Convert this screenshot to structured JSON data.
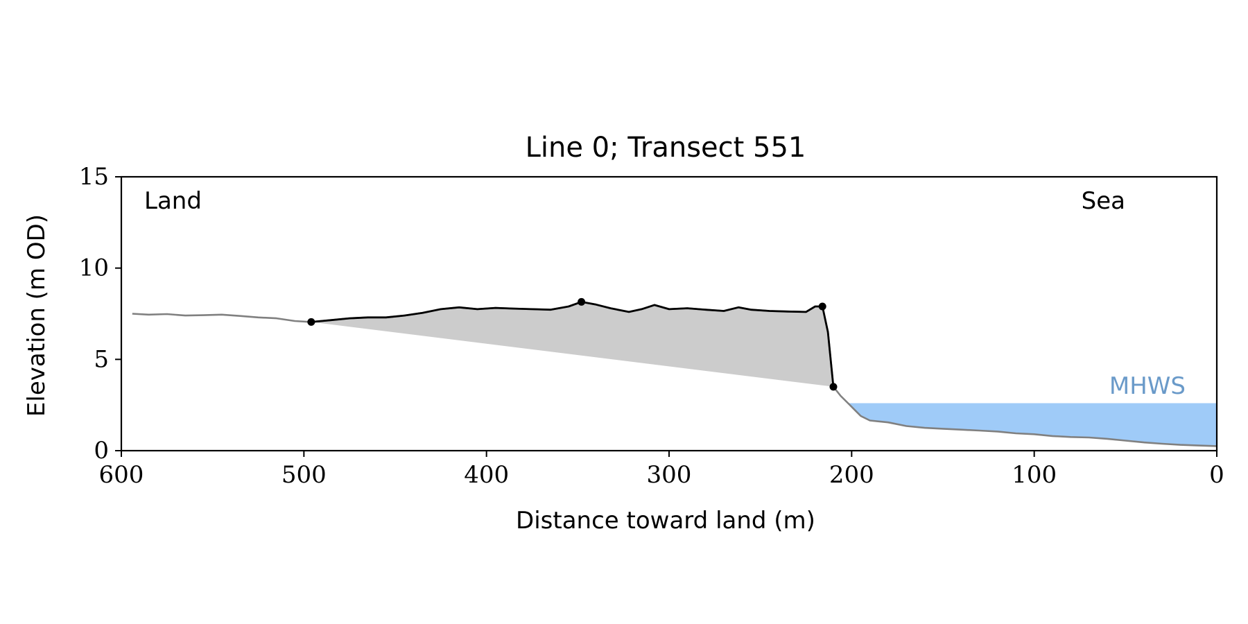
{
  "chart_data": {
    "type": "line",
    "title": "Line 0; Transect 551",
    "xlabel": "Distance toward land (m)",
    "ylabel": "Elevation (m OD)",
    "xlim": [
      600,
      0
    ],
    "ylim": [
      0,
      15
    ],
    "x_ticks": [
      600,
      500,
      400,
      300,
      200,
      100,
      0
    ],
    "y_ticks": [
      0,
      5,
      10,
      15
    ],
    "grid": false,
    "annotations": {
      "land": "Land",
      "sea": "Sea",
      "mhws_label": "MHWS"
    },
    "mhws_level": 2.6,
    "colors": {
      "profile_full": "#808080",
      "profile_segment": "#000000",
      "fill": "#cccccc",
      "water": "#9fcbf8",
      "mhws_text": "#6a9ac9"
    },
    "profile_full": [
      [
        594,
        7.5
      ],
      [
        585,
        7.45
      ],
      [
        575,
        7.48
      ],
      [
        565,
        7.4
      ],
      [
        555,
        7.42
      ],
      [
        545,
        7.45
      ],
      [
        535,
        7.38
      ],
      [
        525,
        7.3
      ],
      [
        515,
        7.25
      ],
      [
        505,
        7.1
      ],
      [
        496,
        7.05
      ],
      [
        485,
        7.15
      ],
      [
        475,
        7.25
      ],
      [
        465,
        7.3
      ],
      [
        455,
        7.3
      ],
      [
        445,
        7.4
      ],
      [
        435,
        7.55
      ],
      [
        425,
        7.75
      ],
      [
        415,
        7.85
      ],
      [
        405,
        7.75
      ],
      [
        395,
        7.82
      ],
      [
        385,
        7.78
      ],
      [
        375,
        7.75
      ],
      [
        365,
        7.72
      ],
      [
        355,
        7.9
      ],
      [
        348,
        8.15
      ],
      [
        340,
        8.0
      ],
      [
        332,
        7.8
      ],
      [
        322,
        7.6
      ],
      [
        315,
        7.75
      ],
      [
        308,
        7.98
      ],
      [
        300,
        7.75
      ],
      [
        290,
        7.8
      ],
      [
        280,
        7.72
      ],
      [
        270,
        7.65
      ],
      [
        262,
        7.85
      ],
      [
        255,
        7.72
      ],
      [
        245,
        7.65
      ],
      [
        235,
        7.62
      ],
      [
        225,
        7.6
      ],
      [
        220,
        7.9
      ],
      [
        216,
        7.9
      ],
      [
        213,
        6.5
      ],
      [
        210,
        3.5
      ],
      [
        206,
        3.0
      ],
      [
        202,
        2.6
      ],
      [
        198,
        2.2
      ],
      [
        195,
        1.9
      ],
      [
        190,
        1.65
      ],
      [
        180,
        1.55
      ],
      [
        170,
        1.35
      ],
      [
        160,
        1.25
      ],
      [
        150,
        1.2
      ],
      [
        140,
        1.15
      ],
      [
        130,
        1.1
      ],
      [
        120,
        1.05
      ],
      [
        110,
        0.95
      ],
      [
        100,
        0.9
      ],
      [
        90,
        0.8
      ],
      [
        80,
        0.75
      ],
      [
        70,
        0.72
      ],
      [
        60,
        0.65
      ],
      [
        50,
        0.55
      ],
      [
        40,
        0.45
      ],
      [
        30,
        0.38
      ],
      [
        20,
        0.32
      ],
      [
        10,
        0.28
      ],
      [
        0,
        0.25
      ]
    ],
    "profile_segment": [
      [
        496,
        7.05
      ],
      [
        485,
        7.15
      ],
      [
        475,
        7.25
      ],
      [
        465,
        7.3
      ],
      [
        455,
        7.3
      ],
      [
        445,
        7.4
      ],
      [
        435,
        7.55
      ],
      [
        425,
        7.75
      ],
      [
        415,
        7.85
      ],
      [
        405,
        7.75
      ],
      [
        395,
        7.82
      ],
      [
        385,
        7.78
      ],
      [
        375,
        7.75
      ],
      [
        365,
        7.72
      ],
      [
        355,
        7.9
      ],
      [
        348,
        8.15
      ],
      [
        340,
        8.0
      ],
      [
        332,
        7.8
      ],
      [
        322,
        7.6
      ],
      [
        315,
        7.75
      ],
      [
        308,
        7.98
      ],
      [
        300,
        7.75
      ],
      [
        290,
        7.8
      ],
      [
        280,
        7.72
      ],
      [
        270,
        7.65
      ],
      [
        262,
        7.85
      ],
      [
        255,
        7.72
      ],
      [
        245,
        7.65
      ],
      [
        235,
        7.62
      ],
      [
        225,
        7.6
      ],
      [
        220,
        7.9
      ],
      [
        216,
        7.9
      ],
      [
        213,
        6.5
      ],
      [
        210,
        3.5
      ]
    ],
    "marked_points": [
      [
        496,
        7.05
      ],
      [
        348,
        8.15
      ],
      [
        216,
        7.9
      ],
      [
        210,
        3.5
      ]
    ]
  }
}
